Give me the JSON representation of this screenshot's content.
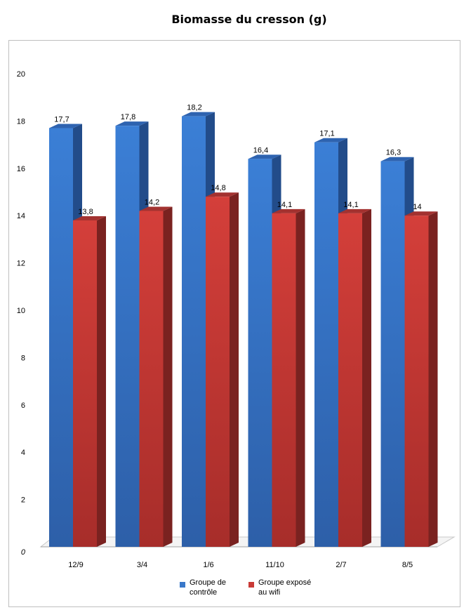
{
  "chart_data": {
    "type": "bar",
    "title": "Biomasse du cresson (g)",
    "categories": [
      "12/9",
      "3/4",
      "1/6",
      "11/10",
      "2/7",
      "8/5"
    ],
    "series": [
      {
        "name": "Groupe de\ncontrôle",
        "values": [
          17.7,
          17.8,
          18.2,
          16.4,
          17.1,
          16.3
        ],
        "value_labels": [
          "17,7",
          "17,8",
          "18,2",
          "16,4",
          "17,1",
          "16,3"
        ],
        "color": "#3A78C9"
      },
      {
        "name": "Groupe exposé\nau wifi",
        "values": [
          13.8,
          14.2,
          14.8,
          14.1,
          14.1,
          14.0
        ],
        "value_labels": [
          "13,8",
          "14,2",
          "14,8",
          "14,1",
          "14,1",
          "14"
        ],
        "color": "#C93A36"
      }
    ],
    "y_ticks": [
      "0",
      "2",
      "4",
      "6",
      "8",
      "10",
      "12",
      "14",
      "16",
      "18",
      "20"
    ],
    "ylim": [
      0,
      20
    ],
    "grid": false,
    "legend_position": "bottom",
    "style": "3d-column"
  }
}
